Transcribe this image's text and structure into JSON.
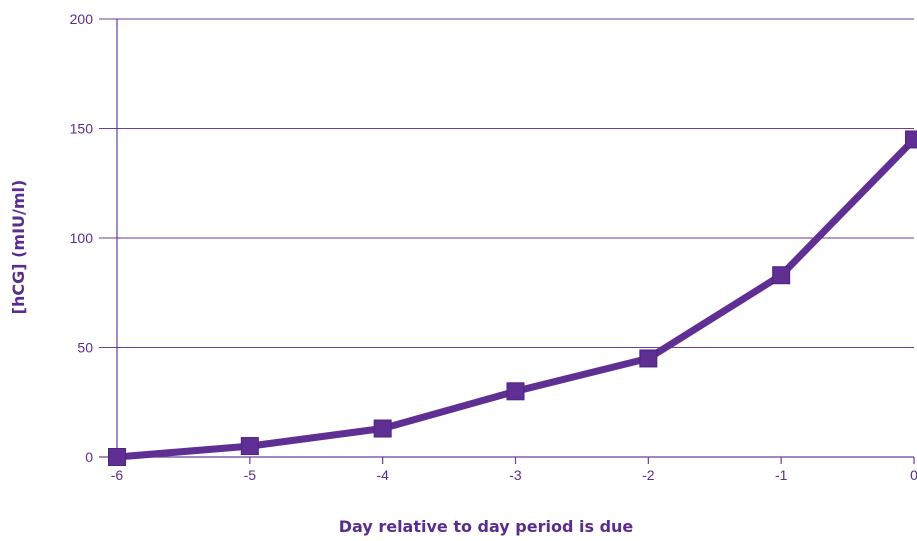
{
  "chart_data": {
    "type": "line",
    "title": "",
    "xlabel": "Day relative to day period is due",
    "ylabel": "[hCG] (mIU/ml)",
    "x": [
      -6,
      -5,
      -4,
      -3,
      -2,
      -1,
      0
    ],
    "x_tick_labels": [
      "-6",
      "-5",
      "-4",
      "-3",
      "-2",
      "-1",
      "0"
    ],
    "y_ticks": [
      0,
      50,
      100,
      150,
      200
    ],
    "y_tick_labels": [
      "0",
      "50",
      "100",
      "150",
      "200"
    ],
    "xlim": [
      -6,
      0
    ],
    "ylim": [
      0,
      200
    ],
    "grid": "horizontal",
    "legend": "none",
    "series": [
      {
        "values": [
          0,
          5,
          13,
          30,
          45,
          83,
          145
        ]
      }
    ],
    "colors": {
      "line": "#5f2f94",
      "grid": "#6a3d9a",
      "text": "#5a2d8c"
    }
  }
}
